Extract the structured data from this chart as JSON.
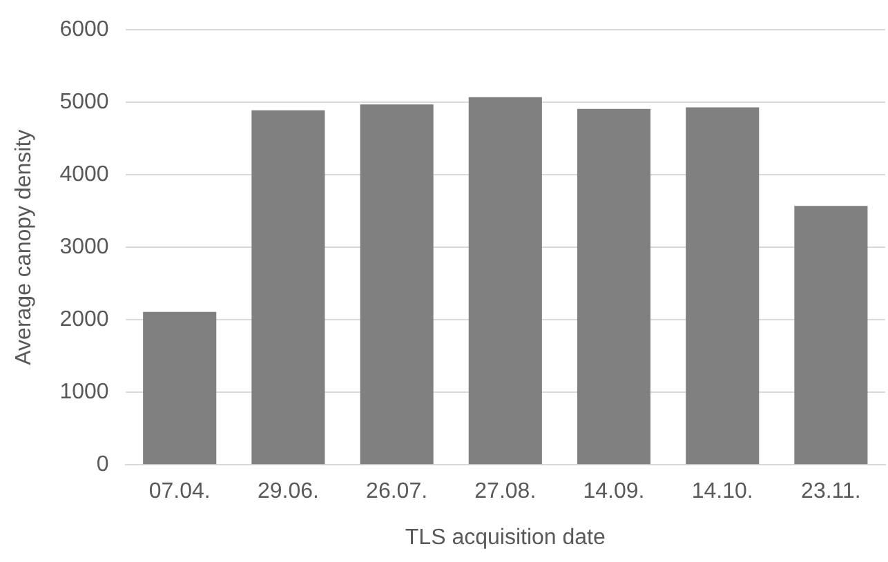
{
  "chart_data": {
    "type": "bar",
    "xlabel": "TLS acquisition date",
    "ylabel": "Average canopy density",
    "categories": [
      "07.04.",
      "29.06.",
      "26.07.",
      "27.08.",
      "14.09.",
      "14.10.",
      "23.11."
    ],
    "values": [
      2110,
      4890,
      4970,
      5070,
      4910,
      4930,
      3570
    ],
    "color": "#808080",
    "ylim": [
      0,
      6000
    ],
    "yticks": [
      0,
      1000,
      2000,
      3000,
      4000,
      5000,
      6000
    ],
    "grid": "y"
  }
}
